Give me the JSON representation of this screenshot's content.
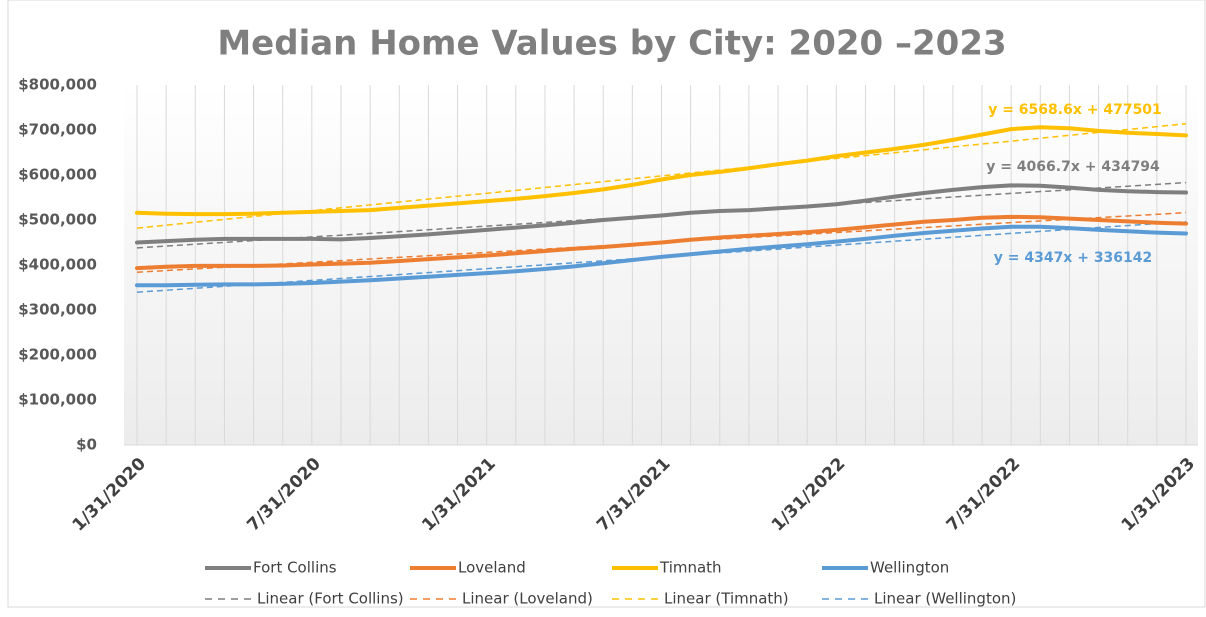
{
  "chart_data": {
    "type": "line",
    "title": "Median Home Values by City: 2020 –2023",
    "categories": [
      "1/31/2020",
      null,
      null,
      null,
      null,
      null,
      "7/31/2020",
      null,
      null,
      null,
      null,
      null,
      "1/31/2021",
      null,
      null,
      null,
      null,
      null,
      "7/31/2021",
      null,
      null,
      null,
      null,
      null,
      "1/31/2022",
      null,
      null,
      null,
      null,
      null,
      "7/31/2022",
      null,
      null,
      null,
      null,
      null,
      "1/31/2023"
    ],
    "ylim": [
      0,
      800000
    ],
    "yticks": [
      {
        "value": 0,
        "label": "$0"
      },
      {
        "value": 100000,
        "label": "$100,000"
      },
      {
        "value": 200000,
        "label": "$200,000"
      },
      {
        "value": 300000,
        "label": "$300,000"
      },
      {
        "value": 400000,
        "label": "$400,000"
      },
      {
        "value": 500000,
        "label": "$500,000"
      },
      {
        "value": 600000,
        "label": "$600,000"
      },
      {
        "value": 700000,
        "label": "$700,000"
      },
      {
        "value": 800000,
        "label": "$800,000"
      }
    ],
    "grid": true,
    "legend": "bottom",
    "series": [
      {
        "name": "Fort Collins",
        "color": "#7f7f7f",
        "trendline_name": "Linear (Fort Collins)",
        "trendline_label": "y = 4066.7x + 434794",
        "values": [
          450000,
          453000,
          456000,
          458000,
          458000,
          458000,
          458000,
          457000,
          460000,
          464000,
          468000,
          473000,
          478000,
          483000,
          488000,
          494000,
          500000,
          505000,
          510000,
          516000,
          520000,
          522000,
          526000,
          530000,
          535000,
          543000,
          552000,
          560000,
          567000,
          573000,
          577000,
          576000,
          572000,
          567000,
          564000,
          562000,
          561000
        ]
      },
      {
        "name": "Loveland",
        "color": "#ed7d31",
        "trendline_name": "Linear (Loveland)",
        "values": [
          393000,
          396000,
          398000,
          398000,
          398000,
          399000,
          401000,
          403000,
          405000,
          409000,
          413000,
          417000,
          421000,
          426000,
          431000,
          436000,
          440000,
          445000,
          450000,
          456000,
          461000,
          465000,
          469000,
          473000,
          478000,
          484000,
          490000,
          496000,
          500000,
          505000,
          507000,
          506000,
          503000,
          500000,
          497000,
          494000,
          492000
        ]
      },
      {
        "name": "Timnath",
        "color": "#ffc000",
        "trendline_name": "Linear (Timnath)",
        "trendline_label": "y = 6568.6x + 477501",
        "values": [
          516000,
          514000,
          513000,
          513000,
          514000,
          516000,
          518000,
          520000,
          522000,
          527000,
          532000,
          537000,
          542000,
          547000,
          553000,
          560000,
          568000,
          578000,
          590000,
          600000,
          607000,
          615000,
          624000,
          632000,
          642000,
          650000,
          658000,
          667000,
          678000,
          690000,
          702000,
          706000,
          704000,
          698000,
          694000,
          691000,
          688000
        ]
      },
      {
        "name": "Wellington",
        "color": "#5b9bd5",
        "trendline_name": "Linear (Wellington)",
        "trendline_label": "y = 4347x + 336142",
        "values": [
          355000,
          355000,
          356000,
          357000,
          357000,
          358000,
          360000,
          363000,
          366000,
          370000,
          374000,
          378000,
          382000,
          386000,
          391000,
          397000,
          404000,
          411000,
          418000,
          424000,
          430000,
          436000,
          441000,
          446000,
          452000,
          458000,
          465000,
          471000,
          476000,
          481000,
          485000,
          485000,
          482000,
          478000,
          475000,
          472000,
          470000
        ]
      }
    ]
  }
}
